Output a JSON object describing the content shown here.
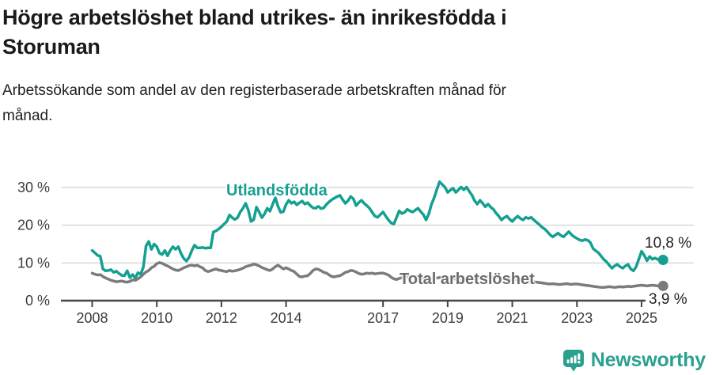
{
  "header": {
    "title_lines": [
      "Högre arbetslöshet bland utrikes- än inrikesfödda i",
      "Storuman"
    ],
    "subtitle_lines": [
      "Arbetssökande som andel av den registerbaserade arbetskraften månad för",
      "månad."
    ]
  },
  "chart_data": {
    "type": "line",
    "title": "Högre arbetslöshet bland utrikes- än inrikesfödda i Storuman",
    "subtitle": "Arbetssökande som andel av den registerbaserade arbetskraften månad för månad.",
    "unit": "%",
    "frequency": "monthly",
    "x_start": {
      "year": 2008,
      "month": 1
    },
    "x_tick_years": [
      2008,
      2010,
      2012,
      2014,
      2017,
      2019,
      2021,
      2023,
      2025
    ],
    "y_ticks": [
      {
        "value": 0,
        "label": "0 %"
      },
      {
        "value": 10,
        "label": "10 %"
      },
      {
        "value": 20,
        "label": "20 %"
      },
      {
        "value": 30,
        "label": "30 %"
      }
    ],
    "ylim": [
      0,
      32
    ],
    "grid": true,
    "series": [
      {
        "name": "Utlandsfödda",
        "color": "#14a090",
        "last_value_label": "10,8 %",
        "values": [
          13.3,
          12.7,
          12.0,
          11.8,
          8.4,
          7.9,
          8.0,
          8.2,
          7.5,
          7.8,
          7.2,
          6.7,
          6.6,
          7.9,
          6.1,
          6.9,
          6.0,
          7.4,
          7.0,
          8.9,
          14.5,
          15.7,
          13.6,
          15.0,
          14.3,
          12.6,
          12.2,
          13.3,
          11.9,
          13.3,
          14.3,
          13.6,
          14.3,
          12.5,
          11.2,
          10.5,
          11.5,
          13.3,
          14.7,
          14.0,
          14.0,
          14.1,
          13.9,
          14.0,
          14.0,
          18.2,
          18.5,
          19.0,
          19.6,
          20.3,
          21.0,
          22.7,
          22.0,
          21.5,
          22.0,
          23.5,
          24.5,
          25.8,
          24.0,
          21.0,
          21.5,
          24.8,
          23.5,
          22.0,
          23.0,
          24.5,
          23.7,
          25.5,
          27.3,
          25.0,
          23.4,
          23.6,
          25.5,
          26.6,
          25.8,
          26.2,
          25.4,
          26.0,
          26.4,
          25.6,
          26.0,
          25.2,
          24.6,
          24.5,
          25.0,
          24.4,
          24.6,
          25.5,
          26.2,
          26.8,
          27.2,
          27.6,
          27.9,
          26.8,
          25.8,
          26.5,
          27.6,
          27.0,
          25.2,
          26.0,
          26.6,
          25.8,
          25.2,
          24.5,
          23.4,
          22.4,
          22.1,
          22.8,
          23.5,
          22.4,
          21.4,
          20.6,
          20.3,
          22.0,
          23.8,
          23.1,
          23.4,
          24.2,
          23.8,
          23.5,
          24.0,
          24.5,
          23.6,
          22.8,
          21.4,
          23.0,
          25.5,
          27.3,
          29.5,
          31.5,
          30.8,
          30.1,
          28.7,
          29.3,
          29.8,
          28.7,
          29.4,
          30.1,
          29.4,
          30.1,
          29.0,
          28.0,
          26.5,
          25.6,
          26.6,
          25.8,
          24.9,
          25.6,
          24.8,
          24.2,
          23.2,
          22.4,
          21.4,
          22.0,
          22.4,
          21.6,
          21.0,
          21.8,
          22.4,
          21.8,
          21.4,
          22.1,
          21.8,
          22.1,
          21.4,
          20.8,
          20.2,
          19.5,
          19.0,
          18.3,
          17.5,
          16.9,
          17.4,
          17.9,
          17.3,
          16.9,
          17.6,
          18.3,
          17.5,
          16.9,
          16.5,
          16.1,
          15.9,
          16.2,
          16.0,
          15.4,
          13.8,
          13.2,
          12.7,
          11.8,
          10.9,
          10.3,
          9.4,
          8.6,
          9.2,
          9.6,
          9.0,
          8.6,
          9.2,
          9.6,
          8.4,
          7.9,
          9.0,
          11.0,
          13.1,
          12.0,
          10.6,
          11.7,
          11.0,
          11.3,
          10.9,
          11.2,
          10.8
        ]
      },
      {
        "name": "Total arbetslöshet",
        "color": "#7b7b7b",
        "last_value_label": "3,9 %",
        "values": [
          7.3,
          7.0,
          6.8,
          6.9,
          6.4,
          6.0,
          5.7,
          5.4,
          5.2,
          5.0,
          5.1,
          5.2,
          5.0,
          4.9,
          5.1,
          5.5,
          5.4,
          5.8,
          6.3,
          7.0,
          7.6,
          8.0,
          8.7,
          9.1,
          9.8,
          10.1,
          9.9,
          9.5,
          9.2,
          8.8,
          8.4,
          8.1,
          8.0,
          8.3,
          8.7,
          9.0,
          9.3,
          9.4,
          9.2,
          9.4,
          9.0,
          8.7,
          8.0,
          7.7,
          7.9,
          8.2,
          8.4,
          8.1,
          8.0,
          7.8,
          7.7,
          8.0,
          7.8,
          7.9,
          8.1,
          8.3,
          8.6,
          9.0,
          9.2,
          9.4,
          9.7,
          9.5,
          9.2,
          8.8,
          8.5,
          8.2,
          8.0,
          8.4,
          9.0,
          9.4,
          8.9,
          8.4,
          8.7,
          8.4,
          8.0,
          7.7,
          7.0,
          6.4,
          6.3,
          6.5,
          6.6,
          7.2,
          8.0,
          8.4,
          8.3,
          7.9,
          7.5,
          7.3,
          6.8,
          6.4,
          6.3,
          6.5,
          6.6,
          7.0,
          7.5,
          7.7,
          8.0,
          7.9,
          7.6,
          7.2,
          7.0,
          7.1,
          7.3,
          7.2,
          7.3,
          7.1,
          7.2,
          7.3,
          7.3,
          7.1,
          6.8,
          6.2,
          5.8,
          5.6,
          5.9,
          6.1,
          6.3,
          6.4,
          6.5,
          6.4,
          6.4,
          6.3,
          6.1,
          5.9,
          5.7,
          5.6,
          5.8,
          5.9,
          6.0,
          6.1,
          6.2,
          6.1,
          6.1,
          6.0,
          5.9,
          5.7,
          5.6,
          5.5,
          5.7,
          5.8,
          5.9,
          6.0,
          6.1,
          6.0,
          6.0,
          6.1,
          6.2,
          6.4,
          6.3,
          6.2,
          6.1,
          6.0,
          5.9,
          5.8,
          5.7,
          5.7,
          5.6,
          5.6,
          5.5,
          5.4,
          5.3,
          5.2,
          5.1,
          5.0,
          5.0,
          4.9,
          4.8,
          4.7,
          4.6,
          4.5,
          4.4,
          4.5,
          4.4,
          4.3,
          4.3,
          4.4,
          4.5,
          4.4,
          4.3,
          4.4,
          4.4,
          4.3,
          4.2,
          4.1,
          4.0,
          3.9,
          3.8,
          3.7,
          3.6,
          3.5,
          3.5,
          3.6,
          3.7,
          3.6,
          3.5,
          3.6,
          3.7,
          3.6,
          3.7,
          3.8,
          3.7,
          3.8,
          3.9,
          4.0,
          4.1,
          4.0,
          3.9,
          4.0,
          4.1,
          4.0,
          3.9,
          3.9,
          3.9
        ]
      }
    ]
  },
  "footer": {
    "brand": "Newsworthy"
  },
  "colors": {
    "teal": "#14a090",
    "gray": "#7b7b7b",
    "grid": "#d8d8d8",
    "axis": "#444444",
    "tick_text": "#3d3d3d",
    "title_text": "#1a1a1a"
  }
}
